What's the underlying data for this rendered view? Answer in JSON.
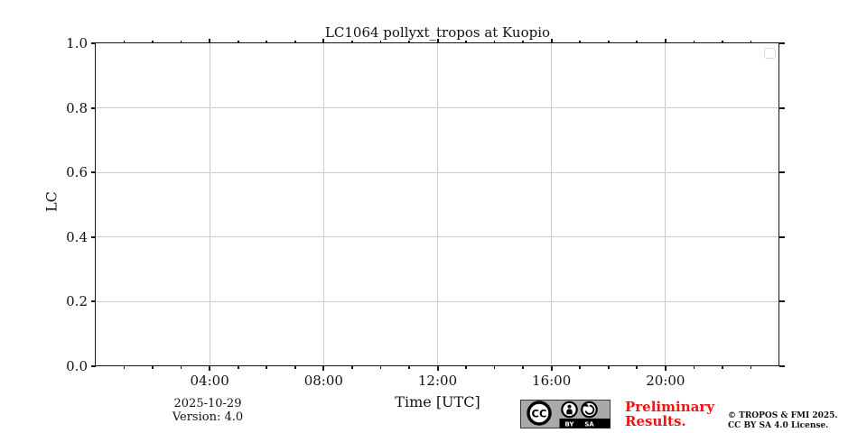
{
  "title": "LC1064 pollyxt_tropos at Kuopio",
  "chart_data": {
    "type": "line",
    "title": "LC1064 pollyxt_tropos at Kuopio",
    "xlabel": "Time [UTC]",
    "ylabel": "LC",
    "x_axis": {
      "unit": "hours UTC",
      "range_hours": [
        0,
        24
      ],
      "major_tick_hours": [
        4,
        8,
        12,
        16,
        20
      ],
      "major_tick_labels": [
        "04:00",
        "08:00",
        "12:00",
        "16:00",
        "20:00"
      ],
      "minor_tick_interval_hours": 1
    },
    "y_axis": {
      "ylim": [
        0.0,
        1.0
      ],
      "tick_values": [
        0.0,
        0.2,
        0.4,
        0.6,
        0.8,
        1.0
      ],
      "tick_labels": [
        "0.0",
        "0.2",
        "0.4",
        "0.6",
        "0.8",
        "1.0"
      ]
    },
    "grid": true,
    "series": [],
    "legend": {
      "visible": true,
      "entries": []
    }
  },
  "footer": {
    "date": "2025-10-29",
    "version": "Version: 4.0",
    "preliminary_line1": "Preliminary",
    "preliminary_line2": "Results.",
    "copyright_line1": "© TROPOS & FMI 2025.",
    "copyright_line2": "CC BY SA 4.0 License.",
    "badge": {
      "cc_label": "CC",
      "by_label": "BY",
      "sa_label": "SA"
    }
  },
  "colors": {
    "axis": "#151515",
    "grid": "#cccccc",
    "preliminary_red": "#ee1414",
    "badge_gray": "#a9a9a9",
    "legend_border": "#d9d9d9"
  }
}
